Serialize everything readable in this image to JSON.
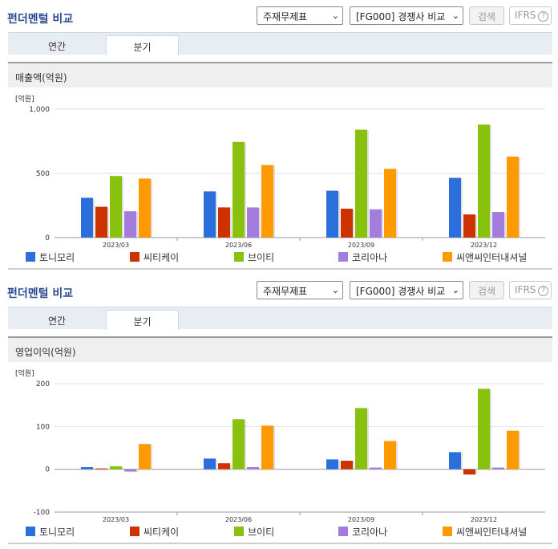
{
  "header": {
    "title": "펀더멘털 비교",
    "select_statement": "주재무제표",
    "select_compare": "[FG000] 경쟁사 비교",
    "search_label": "검색",
    "ifrs_label": "IFRS",
    "help_glyph": "?"
  },
  "tabs": [
    {
      "label": "연간",
      "active": false
    },
    {
      "label": "분기",
      "active": true
    }
  ],
  "colors": {
    "토니모리": "#2a6fdb",
    "씨티케이": "#cc3300",
    "브이티": "#88c20f",
    "코리아나": "#a37cde",
    "씨앤씨인터내셔널": "#ff9900"
  },
  "chart_data": [
    {
      "type": "bar",
      "section_title": "매출액(억원)",
      "unit_label": "[억원]",
      "categories": [
        "2023/03",
        "2023/06",
        "2023/09",
        "2023/12"
      ],
      "ylim": [
        0,
        1000
      ],
      "yticks": [
        "0",
        "500",
        "1,000"
      ],
      "ytick_values": [
        0,
        500,
        1000
      ],
      "grid": true,
      "legend": "bottom",
      "series": [
        {
          "name": "토니모리",
          "values": [
            310,
            360,
            365,
            465
          ]
        },
        {
          "name": "씨티케이",
          "values": [
            240,
            235,
            225,
            180
          ]
        },
        {
          "name": "브이티",
          "values": [
            480,
            745,
            840,
            880
          ]
        },
        {
          "name": "코리아나",
          "values": [
            205,
            235,
            220,
            200
          ]
        },
        {
          "name": "씨앤씨인터내셔널",
          "values": [
            460,
            565,
            535,
            630
          ]
        }
      ]
    },
    {
      "type": "bar",
      "section_title": "영업이익(억원)",
      "unit_label": "[억원]",
      "categories": [
        "2023/03",
        "2023/06",
        "2023/09",
        "2023/12"
      ],
      "ylim": [
        -100,
        200
      ],
      "yticks": [
        "-100",
        "0",
        "100",
        "200"
      ],
      "ytick_values": [
        -100,
        0,
        100,
        200
      ],
      "grid": true,
      "legend": "bottom",
      "series": [
        {
          "name": "토니모리",
          "values": [
            5,
            25,
            23,
            40
          ]
        },
        {
          "name": "씨티케이",
          "values": [
            2,
            14,
            20,
            -12
          ]
        },
        {
          "name": "브이티",
          "values": [
            7,
            117,
            143,
            188
          ]
        },
        {
          "name": "코리아나",
          "values": [
            -5,
            5,
            4,
            4
          ]
        },
        {
          "name": "씨앤씨인터내셔널",
          "values": [
            59,
            102,
            66,
            90
          ]
        }
      ]
    }
  ]
}
